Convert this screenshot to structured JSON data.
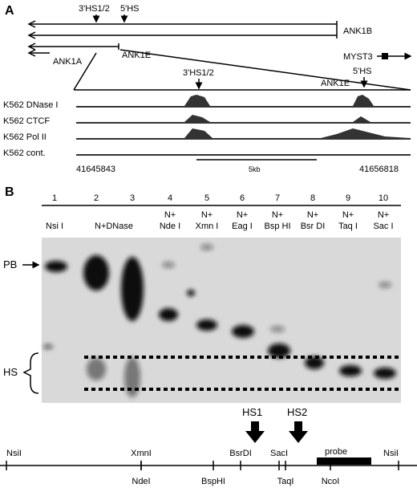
{
  "panel_a": {
    "label": "A",
    "hs12": "3'HS1/2",
    "hs5": "5'HS",
    "ank1b": "ANK1B",
    "myst3": "MYST3",
    "ank1e": "ANK1E",
    "ank1a": "ANK1A",
    "zoom_hs12": "3'HS1/2",
    "zoom_hs5": "5'HS",
    "zoom_ank1e": "ANK1E",
    "tracks": [
      "K562 DNase I",
      "K562 CTCF",
      "K562 Pol II",
      "K562 cont."
    ],
    "coord_left": "41645843",
    "coord_right": "41656818",
    "scale": "5kb"
  },
  "panel_b": {
    "label": "B",
    "lanes": [
      "1",
      "2",
      "3",
      "4",
      "5",
      "6",
      "7",
      "8",
      "9",
      "10"
    ],
    "lane_top": [
      "",
      "",
      "",
      "N+",
      "N+",
      "N+",
      "N+",
      "N+",
      "N+",
      "N+"
    ],
    "lane_bottom": [
      "Nsi I",
      "N+DNase",
      "",
      "Nde I",
      "Xmn I",
      "Eag I",
      "Bsp  HI",
      "Bsr  DI",
      "Taq I",
      "Sac I"
    ],
    "pb": "PB",
    "hs": "HS",
    "hs1": "HS1",
    "hs2": "HS2",
    "map_top": [
      "NsiI",
      "XmnI",
      "BsrDI",
      "SacI",
      "NsiI"
    ],
    "map_bottom": [
      "NdeI",
      "BspHI",
      "TaqI",
      "NcoI"
    ],
    "probe": "probe"
  }
}
